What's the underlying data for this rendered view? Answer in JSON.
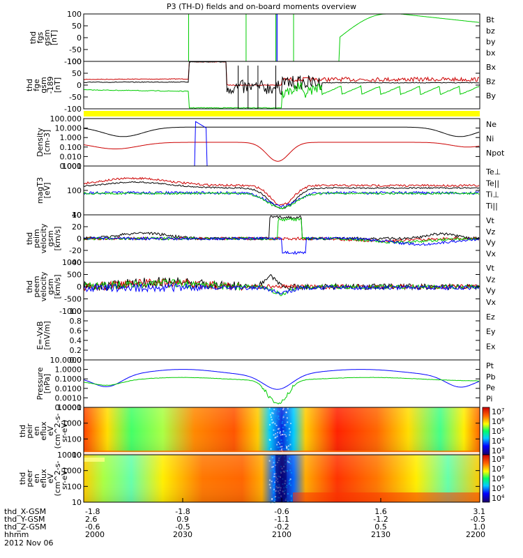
{
  "title": "P3 (TH-D) fields and on-board moments overview",
  "colors": {
    "black": "#000000",
    "red": "#cc0000",
    "green": "#00cc00",
    "blue": "#0000ff",
    "yellow": "#ffff00"
  },
  "chart_data": [
    {
      "type": "line",
      "id": "fgs",
      "ylabel": [
        "thd",
        "fgs",
        "gsm",
        "[nT]"
      ],
      "ylim": [
        -100,
        100
      ],
      "yticks": [
        "100",
        "50",
        "0",
        "-50",
        "-100"
      ],
      "legend": [
        {
          "label": "Bt",
          "color": "#000000"
        },
        {
          "label": "bz",
          "color": "#cc0000"
        },
        {
          "label": "by",
          "color": "#00cc00"
        },
        {
          "label": "bx",
          "color": "#0000ff"
        }
      ]
    },
    {
      "type": "line",
      "id": "fge",
      "ylabel": [
        "thd",
        "fge",
        "gsm",
        "-189"
      ],
      "ylabel_unit": "[nT]",
      "ylim": [
        -125,
        125
      ],
      "yticks": [
        "100",
        "50",
        "0",
        "-50",
        "-100"
      ],
      "legend": [
        {
          "label": "Bx",
          "color": "#000000"
        },
        {
          "label": "Bz",
          "color": "#cc0000"
        },
        {
          "label": "By",
          "color": "#00cc00"
        }
      ]
    },
    {
      "type": "line",
      "id": "density",
      "scale": "log",
      "ylabel": [
        "Density",
        "[cm-3]"
      ],
      "yticks": [
        "100.000",
        "10.000",
        "1.000",
        "0.100",
        "0.010",
        "0.001"
      ],
      "legend": [
        {
          "label": "Ne",
          "color": "#cc0000"
        },
        {
          "label": "Ni",
          "color": "#000000"
        },
        {
          "label": "Npot",
          "color": "#0000ff"
        }
      ]
    },
    {
      "type": "line",
      "id": "temp",
      "scale": "log",
      "ylabel": [
        "magT3",
        "[eV]"
      ],
      "yticks": [
        "1000",
        "100",
        "10"
      ],
      "legend": [
        {
          "label": "Te⊥",
          "color": "#cc0000"
        },
        {
          "label": "Te||",
          "color": "#000000"
        },
        {
          "label": "Ti⊥",
          "color": "#0000ff"
        },
        {
          "label": "Ti||",
          "color": "#00cc00"
        }
      ]
    },
    {
      "type": "line",
      "id": "peim",
      "ylabel": [
        "thd",
        "peim",
        "velocity",
        "gsm",
        "[km/s]"
      ],
      "ylim": [
        -40,
        40
      ],
      "yticks": [
        "40",
        "20",
        "0",
        "-20",
        "-40"
      ],
      "legend": [
        {
          "label": "Vt",
          "color": "#000000"
        },
        {
          "label": "Vz",
          "color": "#cc0000"
        },
        {
          "label": "Vy",
          "color": "#00cc00"
        },
        {
          "label": "Vx",
          "color": "#0000ff"
        }
      ]
    },
    {
      "type": "line",
      "id": "peem",
      "ylabel": [
        "thd",
        "peem",
        "velocity",
        "gsm",
        "[km/s]"
      ],
      "ylim": [
        -1000,
        1000
      ],
      "yticks": [
        "1000",
        "500",
        "0",
        "-500",
        "-1000"
      ],
      "legend": [
        {
          "label": "Vt",
          "color": "#000000"
        },
        {
          "label": "Vz",
          "color": "#cc0000"
        },
        {
          "label": "Vy",
          "color": "#00cc00"
        },
        {
          "label": "Vx",
          "color": "#0000ff"
        }
      ]
    },
    {
      "type": "line",
      "id": "efield",
      "ylabel": [
        "E=-VxB",
        "[mV/m]"
      ],
      "ylim": [
        0,
        1
      ],
      "yticks": [
        "1.0",
        "0.8",
        "0.6",
        "0.4",
        "0.2",
        "0.0"
      ],
      "legend": [
        {
          "label": "Ez",
          "color": "#cc0000"
        },
        {
          "label": "Ey",
          "color": "#00cc00"
        },
        {
          "label": "Ex",
          "color": "#0000ff"
        }
      ]
    },
    {
      "type": "line",
      "id": "pressure",
      "scale": "log",
      "ylabel": [
        "Pressure",
        "[nPa]"
      ],
      "yticks": [
        "10.0000",
        "1.0000",
        "0.1000",
        "0.0100",
        "0.0010",
        "0.0001"
      ],
      "legend": [
        {
          "label": "Pt",
          "color": "#000000"
        },
        {
          "label": "Pb",
          "color": "#cc0000"
        },
        {
          "label": "Pe",
          "color": "#00cc00"
        },
        {
          "label": "Pi",
          "color": "#0000ff"
        }
      ]
    },
    {
      "type": "heatmap",
      "id": "peir",
      "ylabel": [
        "thd",
        "peir",
        "en",
        "eflux",
        "eV",
        "(cm^2-s-",
        "sr-eV)"
      ],
      "yticks": [
        "10000",
        "1000",
        "100",
        "10"
      ],
      "colorbar_ticks": [
        "10^7",
        "10^6",
        "10^5",
        "10^4",
        "10^3"
      ]
    },
    {
      "type": "heatmap",
      "id": "peer",
      "ylabel": [
        "thd",
        "peer",
        "en",
        "eflux",
        "eV",
        "(cm^2-s-",
        "sr-eV)"
      ],
      "yticks": [
        "10000",
        "1000",
        "100",
        "10"
      ],
      "colorbar_ticks": [
        "10^8",
        "10^7",
        "10^6",
        "10^5",
        "10^4"
      ]
    }
  ],
  "xaxis": {
    "row_labels": [
      "thd_X-GSM",
      "thd_Y-GSM",
      "thd_Z-GSM",
      "hhmm",
      "2012 Nov 06"
    ],
    "columns": [
      {
        "x": "-1.8",
        "y": "2.6",
        "z": "-0.6",
        "t": "2000"
      },
      {
        "x": "-1.8",
        "y": "0.9",
        "z": "-0.5",
        "t": "2030"
      },
      {
        "x": "-0.6",
        "y": "-1.1",
        "z": "-0.2",
        "t": "2100"
      },
      {
        "x": "1.6",
        "y": "-1.2",
        "z": "0.5",
        "t": "2130"
      },
      {
        "x": "3.1",
        "y": "-0.5",
        "z": "1.0",
        "t": "2200"
      }
    ]
  }
}
